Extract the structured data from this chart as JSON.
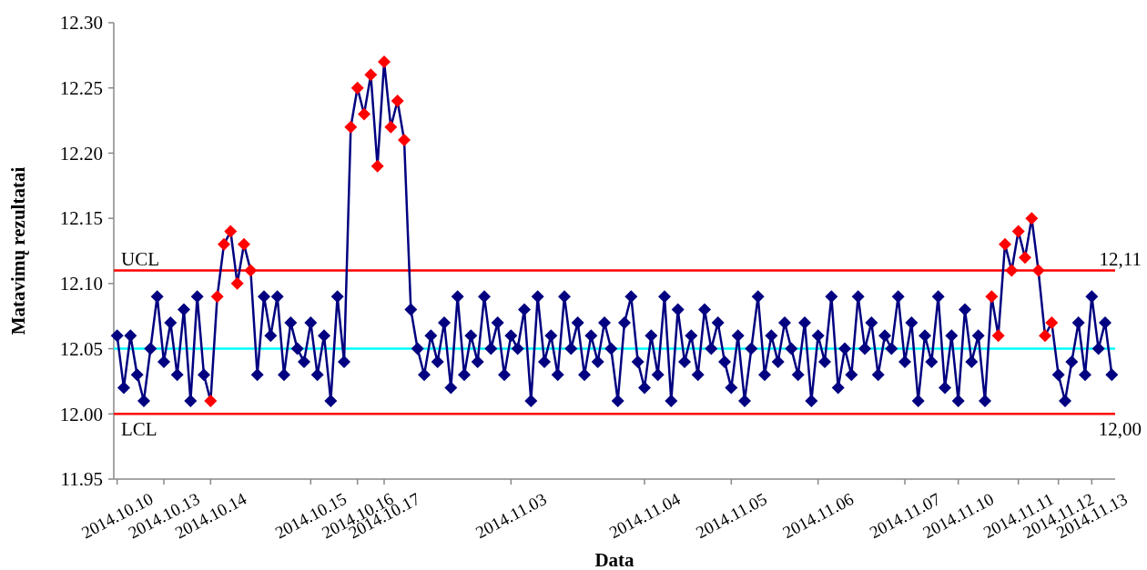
{
  "chart_data": {
    "type": "line",
    "xlabel": "Data",
    "ylabel": "Matavimų rezultatai",
    "marker": "diamond",
    "ylim": [
      11.95,
      12.3
    ],
    "yticks": [
      11.95,
      {
        "value": 12.0,
        "label": "12.00"
      },
      12.05,
      {
        "value": 12.1,
        "label": "12.10"
      },
      12.15,
      {
        "value": 12.2,
        "label": "12.20"
      },
      12.25,
      {
        "value": 12.3,
        "label": "12.30"
      }
    ],
    "categories": [
      "2014.10.10",
      null,
      null,
      null,
      null,
      null,
      null,
      "2014.10.13",
      null,
      null,
      null,
      null,
      null,
      null,
      "2014.10.14",
      null,
      null,
      null,
      null,
      null,
      null,
      null,
      null,
      null,
      null,
      null,
      null,
      null,
      null,
      "2014.10.15",
      null,
      null,
      null,
      null,
      null,
      null,
      "2014.10.16",
      null,
      null,
      null,
      "2014.10.17",
      null,
      null,
      null,
      null,
      null,
      null,
      null,
      null,
      null,
      null,
      null,
      null,
      null,
      null,
      null,
      null,
      null,
      null,
      "2014.11.03",
      null,
      null,
      null,
      null,
      null,
      null,
      null,
      null,
      null,
      null,
      null,
      null,
      null,
      null,
      null,
      null,
      null,
      null,
      null,
      "2014.11.04",
      null,
      null,
      null,
      null,
      null,
      null,
      null,
      null,
      null,
      null,
      null,
      null,
      "2014.11.05",
      null,
      null,
      null,
      null,
      null,
      null,
      null,
      null,
      null,
      null,
      null,
      null,
      "2014.11.06",
      null,
      null,
      null,
      null,
      null,
      null,
      null,
      null,
      null,
      null,
      null,
      null,
      "2014.11.07",
      null,
      null,
      null,
      null,
      null,
      null,
      null,
      "2014.11.10",
      null,
      null,
      null,
      null,
      null,
      null,
      null,
      null,
      "2014.11.11",
      null,
      null,
      null,
      null,
      null,
      "2014.11.12",
      null,
      null,
      null,
      null,
      "2014.11.13",
      null,
      null,
      null
    ],
    "series": [
      {
        "color": "#000080",
        "values": [
          12.06,
          12.02,
          12.06,
          12.03,
          12.01,
          12.05,
          12.09,
          12.04,
          12.07,
          12.03,
          12.08,
          12.01,
          12.09,
          12.03,
          12.01,
          12.09,
          12.13,
          12.14,
          12.1,
          12.13,
          12.11,
          12.03,
          12.09,
          12.06,
          12.09,
          12.03,
          12.07,
          12.05,
          12.04,
          12.07,
          12.03,
          12.06,
          12.01,
          12.09,
          12.04,
          12.22,
          12.25,
          12.23,
          12.26,
          12.19,
          12.27,
          12.22,
          12.24,
          12.21,
          12.08,
          12.05,
          12.03,
          12.06,
          12.04,
          12.07,
          12.02,
          12.09,
          12.03,
          12.06,
          12.04,
          12.09,
          12.05,
          12.07,
          12.03,
          12.06,
          12.05,
          12.08,
          12.01,
          12.09,
          12.04,
          12.06,
          12.03,
          12.09,
          12.05,
          12.07,
          12.03,
          12.06,
          12.04,
          12.07,
          12.05,
          12.01,
          12.07,
          12.09,
          12.04,
          12.02,
          12.06,
          12.03,
          12.09,
          12.01,
          12.08,
          12.04,
          12.06,
          12.03,
          12.08,
          12.05,
          12.07,
          12.04,
          12.02,
          12.06,
          12.01,
          12.05,
          12.09,
          12.03,
          12.06,
          12.04,
          12.07,
          12.05,
          12.03,
          12.07,
          12.01,
          12.06,
          12.04,
          12.09,
          12.02,
          12.05,
          12.03,
          12.09,
          12.05,
          12.07,
          12.03,
          12.06,
          12.05,
          12.09,
          12.04,
          12.07,
          12.01,
          12.06,
          12.04,
          12.09,
          12.02,
          12.06,
          12.01,
          12.08,
          12.04,
          12.06,
          12.01,
          12.09,
          12.06,
          12.13,
          12.11,
          12.14,
          12.12,
          12.15,
          12.11,
          12.06,
          12.07,
          12.03,
          12.01,
          12.04,
          12.07,
          12.03,
          12.09,
          12.05,
          12.07,
          12.03
        ],
        "colors": [
          "#000080",
          "#000080",
          "#000080",
          "#000080",
          "#000080",
          "#000080",
          "#000080",
          "#000080",
          "#000080",
          "#000080",
          "#000080",
          "#000080",
          "#000080",
          "#000080",
          "#ff0000",
          "#ff0000",
          "#ff0000",
          "#ff0000",
          "#ff0000",
          "#ff0000",
          "#ff0000",
          "#000080",
          "#000080",
          "#000080",
          "#000080",
          "#000080",
          "#000080",
          "#000080",
          "#000080",
          "#000080",
          "#000080",
          "#000080",
          "#000080",
          "#000080",
          "#000080",
          "#ff0000",
          "#ff0000",
          "#ff0000",
          "#ff0000",
          "#ff0000",
          "#ff0000",
          "#ff0000",
          "#ff0000",
          "#ff0000",
          "#000080",
          "#000080",
          "#000080",
          "#000080",
          "#000080",
          "#000080",
          "#000080",
          "#000080",
          "#000080",
          "#000080",
          "#000080",
          "#000080",
          "#000080",
          "#000080",
          "#000080",
          "#000080",
          "#000080",
          "#000080",
          "#000080",
          "#000080",
          "#000080",
          "#000080",
          "#000080",
          "#000080",
          "#000080",
          "#000080",
          "#000080",
          "#000080",
          "#000080",
          "#000080",
          "#000080",
          "#000080",
          "#000080",
          "#000080",
          "#000080",
          "#000080",
          "#000080",
          "#000080",
          "#000080",
          "#000080",
          "#000080",
          "#000080",
          "#000080",
          "#000080",
          "#000080",
          "#000080",
          "#000080",
          "#000080",
          "#000080",
          "#000080",
          "#000080",
          "#000080",
          "#000080",
          "#000080",
          "#000080",
          "#000080",
          "#000080",
          "#000080",
          "#000080",
          "#000080",
          "#000080",
          "#000080",
          "#000080",
          "#000080",
          "#000080",
          "#000080",
          "#000080",
          "#000080",
          "#000080",
          "#000080",
          "#000080",
          "#000080",
          "#000080",
          "#000080",
          "#000080",
          "#000080",
          "#000080",
          "#000080",
          "#000080",
          "#000080",
          "#000080",
          "#000080",
          "#000080",
          "#000080",
          "#000080",
          "#000080",
          "#000080",
          "#ff0000",
          "#ff0000",
          "#ff0000",
          "#ff0000",
          "#ff0000",
          "#ff0000",
          "#ff0000",
          "#ff0000",
          "#ff0000",
          "#ff0000",
          "#000080",
          "#000080",
          "#000080",
          "#000080",
          "#000080",
          "#000080",
          "#000080",
          "#000080",
          "#000080"
        ]
      }
    ],
    "ref_lines": [
      {
        "axis": "y",
        "value": 12.11,
        "label": "UCL",
        "color": "#ff0000"
      },
      {
        "axis": "y",
        "value": 12.0,
        "label": "LCL",
        "color": "#ff0000"
      },
      {
        "axis": "y",
        "value": 12.05,
        "color": "#00ffff"
      }
    ],
    "annotations": [
      "12,11",
      "12,00"
    ]
  }
}
